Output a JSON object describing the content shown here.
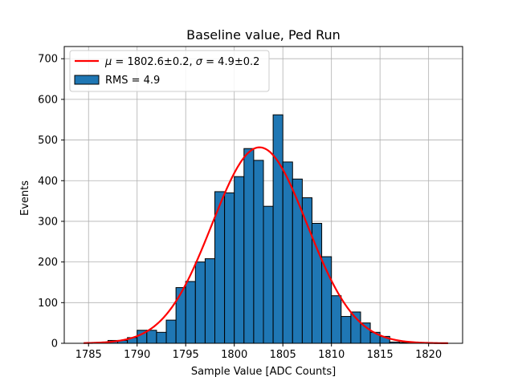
{
  "chart_data": {
    "type": "bar",
    "title": "Baseline value, Ped Run",
    "xlabel": "Sample Value [ADC Counts]",
    "ylabel": "Events",
    "xlim": [
      1782.5,
      1823.5
    ],
    "ylim": [
      0,
      730
    ],
    "xticks": [
      1785,
      1790,
      1795,
      1800,
      1805,
      1810,
      1815,
      1820
    ],
    "yticks": [
      0,
      100,
      200,
      300,
      400,
      500,
      600,
      700
    ],
    "grid": true,
    "legend_position": "top-left",
    "histogram": {
      "name": "RMS = 4.9",
      "bin_width": 1,
      "bin_starts": [
        1785,
        1786,
        1787,
        1788,
        1789,
        1790,
        1791,
        1792,
        1793,
        1794,
        1795,
        1796,
        1797,
        1798,
        1799,
        1800,
        1801,
        1802,
        1803,
        1804,
        1805,
        1806,
        1807,
        1808,
        1809,
        1810,
        1811,
        1812,
        1813,
        1814,
        1815,
        1816,
        1817,
        1818,
        1819,
        1820,
        1821
      ],
      "counts": [
        0,
        1,
        7,
        7,
        14,
        32,
        32,
        27,
        57,
        137,
        152,
        200,
        208,
        373,
        370,
        410,
        479,
        450,
        337,
        562,
        446,
        404,
        358,
        295,
        213,
        117,
        66,
        77,
        50,
        27,
        17,
        3,
        2,
        1,
        0,
        0,
        0
      ],
      "color": "#1f77b4",
      "edge_color": "#000000"
    },
    "fit": {
      "name_mu_symbol": "μ",
      "name_sigma_symbol": "σ",
      "name_mu_text": " = 1802.6±0.2, ",
      "name_sigma_text": " = 4.9±0.2",
      "mu": 1802.6,
      "sigma": 4.9,
      "amplitude": 482,
      "x_range": [
        1784.5,
        1822
      ],
      "color": "#ff0000"
    }
  }
}
